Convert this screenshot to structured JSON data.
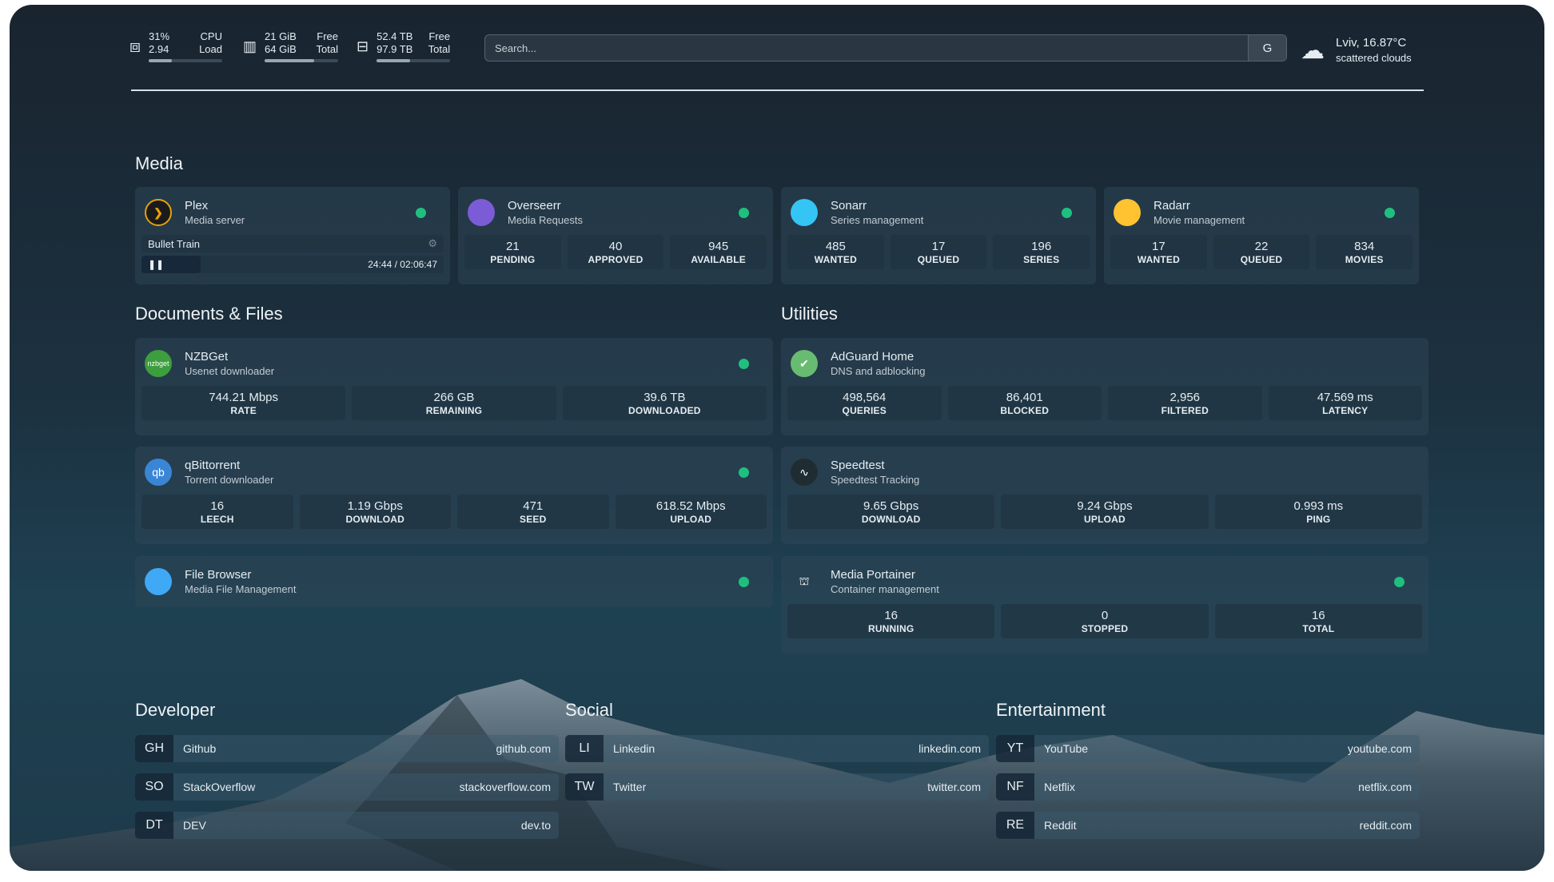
{
  "topbar": {
    "cpu": {
      "icon": "cpu-icon",
      "v1": "31%",
      "v2": "2.94",
      "l1": "CPU",
      "l2": "Load",
      "percent": 31
    },
    "ram": {
      "icon": "memory-icon",
      "v1": "21 GiB",
      "v2": "64 GiB",
      "l1": "Free",
      "l2": "Total",
      "percent": 67
    },
    "disk": {
      "icon": "hard-drive-icon",
      "v1": "52.4 TB",
      "v2": "97.9 TB",
      "l1": "Free",
      "l2": "Total",
      "percent": 46
    },
    "search": {
      "placeholder": "Search...",
      "button": "G"
    },
    "weather": {
      "icon": "cloud-icon",
      "line1": "Lviv, 16.87°C",
      "line2": "scattered clouds"
    }
  },
  "sections": {
    "media": "Media",
    "docs": "Documents & Files",
    "utilities": "Utilities",
    "developer": "Developer",
    "social": "Social",
    "entertainment": "Entertainment"
  },
  "plex": {
    "name": "Plex",
    "sub": "Media server",
    "icon": "plex-icon",
    "status": "online",
    "now_playing": "Bullet Train",
    "time": "24:44 / 02:06:47",
    "progress_percent": 19.5
  },
  "media": [
    {
      "name": "Overseerr",
      "sub": "Media Requests",
      "icon": "overseerr-icon",
      "color": "#7b5cd6",
      "stats": [
        [
          "21",
          "PENDING"
        ],
        [
          "40",
          "APPROVED"
        ],
        [
          "945",
          "AVAILABLE"
        ]
      ]
    },
    {
      "name": "Sonarr",
      "sub": "Series management",
      "icon": "sonarr-icon",
      "color": "#35c5f4",
      "stats": [
        [
          "485",
          "WANTED"
        ],
        [
          "17",
          "QUEUED"
        ],
        [
          "196",
          "SERIES"
        ]
      ]
    },
    {
      "name": "Radarr",
      "sub": "Movie management",
      "icon": "radarr-icon",
      "color": "#ffc230",
      "stats": [
        [
          "17",
          "WANTED"
        ],
        [
          "22",
          "QUEUED"
        ],
        [
          "834",
          "MOVIES"
        ]
      ]
    }
  ],
  "docs": [
    {
      "name": "NZBGet",
      "sub": "Usenet downloader",
      "icon": "nzbget-icon",
      "color": "#3d9e3d",
      "logo_text": "nzbget",
      "dot": true,
      "stats": [
        [
          "744.21 Mbps",
          "RATE"
        ],
        [
          "266 GB",
          "REMAINING"
        ],
        [
          "39.6 TB",
          "DOWNLOADED"
        ]
      ]
    },
    {
      "name": "qBittorrent",
      "sub": "Torrent downloader",
      "icon": "qbittorrent-icon",
      "color": "#3a86d6",
      "logo_text": "qb",
      "dot": true,
      "stats": [
        [
          "16",
          "LEECH"
        ],
        [
          "1.19 Gbps",
          "DOWNLOAD"
        ],
        [
          "471",
          "SEED"
        ],
        [
          "618.52 Mbps",
          "UPLOAD"
        ]
      ]
    },
    {
      "name": "File Browser",
      "sub": "Media File Management",
      "icon": "filebrowser-icon",
      "color": "#3fa9f5",
      "logo_text": "",
      "dot": true,
      "stats": []
    }
  ],
  "utilities": [
    {
      "name": "AdGuard Home",
      "sub": "DNS and adblocking",
      "icon": "adguard-shield-icon",
      "color": "#68bc71",
      "logo_text": "✔",
      "dot": false,
      "stats": [
        [
          "498,564",
          "QUERIES"
        ],
        [
          "86,401",
          "BLOCKED"
        ],
        [
          "2,956",
          "FILTERED"
        ],
        [
          "47.569 ms",
          "LATENCY"
        ]
      ]
    },
    {
      "name": "Speedtest",
      "sub": "Speedtest Tracking",
      "icon": "speedtest-icon",
      "color": "#1f2d33",
      "logo_text": "∿",
      "dot": false,
      "stats": [
        [
          "9.65 Gbps",
          "DOWNLOAD"
        ],
        [
          "9.24 Gbps",
          "UPLOAD"
        ],
        [
          "0.993 ms",
          "PING"
        ]
      ]
    },
    {
      "name": "Media Portainer",
      "sub": "Container management",
      "icon": "portainer-icon",
      "color": "transparent",
      "logo_text": "⛫",
      "dot": true,
      "stats": [
        [
          "16",
          "RUNNING"
        ],
        [
          "0",
          "STOPPED"
        ],
        [
          "16",
          "TOTAL"
        ]
      ]
    }
  ],
  "bookmarks": {
    "developer": [
      [
        "GH",
        "Github",
        "github.com"
      ],
      [
        "SO",
        "StackOverflow",
        "stackoverflow.com"
      ],
      [
        "DT",
        "DEV",
        "dev.to"
      ]
    ],
    "social": [
      [
        "LI",
        "Linkedin",
        "linkedin.com"
      ],
      [
        "TW",
        "Twitter",
        "twitter.com"
      ]
    ],
    "entertainment": [
      [
        "YT",
        "YouTube",
        "youtube.com"
      ],
      [
        "NF",
        "Netflix",
        "netflix.com"
      ],
      [
        "RE",
        "Reddit",
        "reddit.com"
      ]
    ]
  },
  "colors": {
    "status_online": "#1fc07f",
    "background": "#1c3140"
  }
}
